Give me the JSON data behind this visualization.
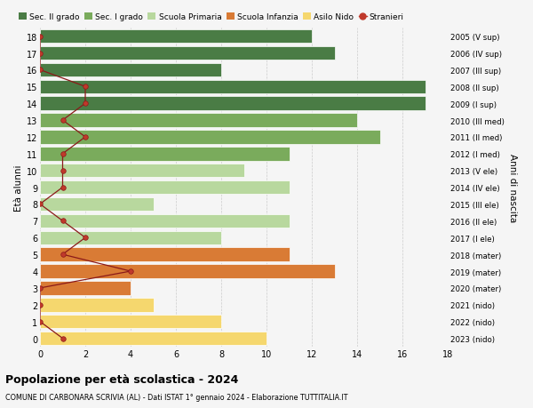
{
  "ages": [
    18,
    17,
    16,
    15,
    14,
    13,
    12,
    11,
    10,
    9,
    8,
    7,
    6,
    5,
    4,
    3,
    2,
    1,
    0
  ],
  "years": [
    "2005 (V sup)",
    "2006 (IV sup)",
    "2007 (III sup)",
    "2008 (II sup)",
    "2009 (I sup)",
    "2010 (III med)",
    "2011 (II med)",
    "2012 (I med)",
    "2013 (V ele)",
    "2014 (IV ele)",
    "2015 (III ele)",
    "2016 (II ele)",
    "2017 (I ele)",
    "2018 (mater)",
    "2019 (mater)",
    "2020 (mater)",
    "2021 (nido)",
    "2022 (nido)",
    "2023 (nido)"
  ],
  "values": [
    12,
    13,
    8,
    17,
    17,
    14,
    15,
    11,
    9,
    11,
    5,
    11,
    8,
    11,
    13,
    4,
    5,
    8,
    10
  ],
  "colors": [
    "#4a7c45",
    "#4a7c45",
    "#4a7c45",
    "#4a7c45",
    "#4a7c45",
    "#7aab5c",
    "#7aab5c",
    "#7aab5c",
    "#b8d89e",
    "#b8d89e",
    "#b8d89e",
    "#b8d89e",
    "#b8d89e",
    "#d97b35",
    "#d97b35",
    "#d97b35",
    "#f5d76e",
    "#f5d76e",
    "#f5d76e"
  ],
  "stranieri": [
    0,
    0,
    0,
    2,
    2,
    1,
    2,
    1,
    1,
    1,
    0,
    1,
    2,
    1,
    4,
    0,
    0,
    0,
    1
  ],
  "legend_labels": [
    "Sec. II grado",
    "Sec. I grado",
    "Scuola Primaria",
    "Scuola Infanzia",
    "Asilo Nido",
    "Stranieri"
  ],
  "legend_colors": [
    "#4a7c45",
    "#7aab5c",
    "#b8d89e",
    "#d97b35",
    "#f5d76e",
    "#c0392b"
  ],
  "title": "Popolazione per età scolastica - 2024",
  "subtitle": "COMUNE DI CARBONARA SCRIVIA (AL) - Dati ISTAT 1° gennaio 2024 - Elaborazione TUTTITALIA.IT",
  "ylabel": "Età alunni",
  "ylabel2": "Anni di nascita",
  "xlim": [
    0,
    18
  ],
  "background_color": "#f5f5f5",
  "grid_color": "#cccccc"
}
